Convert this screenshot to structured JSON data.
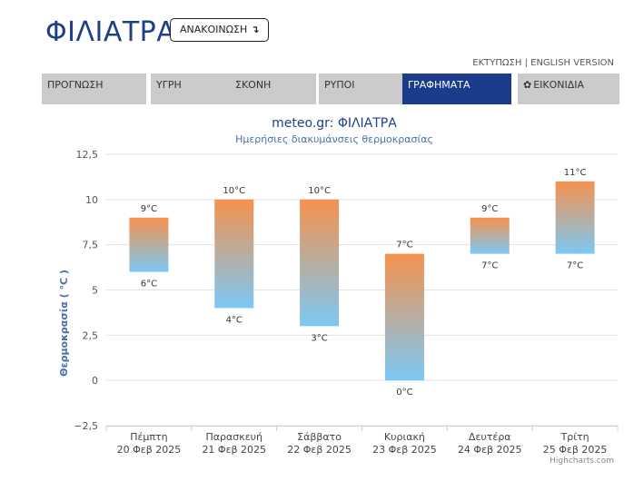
{
  "header": {
    "title": "ΦΙΛΙΑΤΡΑ",
    "announce_label": "ΑΝΑΚΟΙΝΩΣΗ",
    "announce_icon": "turn-down-arrow-icon"
  },
  "toplinks": {
    "print": "ΕΚΤΥΠΩΣΗ",
    "separator": "|",
    "english": "ENGLISH VERSION"
  },
  "tabs": [
    {
      "label": "ΠΡΟΓΝΩΣΗ",
      "active": false
    },
    {
      "label": "ΥΓΡΗ",
      "active": false
    },
    {
      "label": "ΣΚΟΝΗ",
      "active": false
    },
    {
      "label": "ΡΥΠΟΙ",
      "active": false
    },
    {
      "label": "ΓΡΑΦΗΜΑΤΑ",
      "active": true
    },
    {
      "label": "ΕΙΚΟΝΙΔΙΑ",
      "active": false,
      "icon": "gear-icon"
    }
  ],
  "colors": {
    "brand": "#1f3f86",
    "active_tab": "#1b3c8a",
    "tab": "#cbcbcb",
    "bar_top": "#f5924e",
    "bar_bottom": "#7cc8f4"
  },
  "chart_data": {
    "type": "bar",
    "subtype": "columnrange",
    "title": "meteo.gr: ΦΙΛΙΑΤΡΑ",
    "subtitle": "Ημερήσιες διακυμάνσεις θερμοκρασίας",
    "ylabel": "Θερμοκρασία ( °C )",
    "ylim": [
      -2.5,
      12.5
    ],
    "yticks": [
      "−2,5",
      "0",
      "2,5",
      "5",
      "7,5",
      "10",
      "12,5"
    ],
    "ytick_values": [
      -2.5,
      0,
      2.5,
      5,
      7.5,
      10,
      12.5
    ],
    "unit": "°C",
    "grid": true,
    "categories": [
      [
        "Πέμπτη",
        "20 Φεβ 2025"
      ],
      [
        "Παρασκευή",
        "21 Φεβ 2025"
      ],
      [
        "Σάββατο",
        "22 Φεβ 2025"
      ],
      [
        "Κυριακή",
        "23 Φεβ 2025"
      ],
      [
        "Δευτέρα",
        "24 Φεβ 2025"
      ],
      [
        "Τρίτη",
        "25 Φεβ 2025"
      ]
    ],
    "min": [
      6,
      4,
      3,
      0,
      7,
      7
    ],
    "max": [
      9,
      10,
      10,
      7,
      9,
      11
    ],
    "credit": "Highcharts.com"
  }
}
